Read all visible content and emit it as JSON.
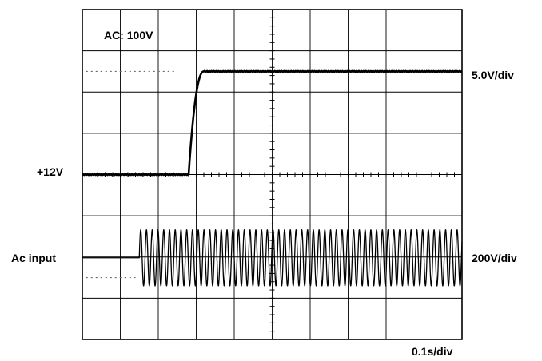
{
  "chart_data": {
    "type": "line",
    "annotation": "AC: 100V",
    "xlabel": "0.1s/div",
    "grid": {
      "divisions_x": 10,
      "divisions_y": 8,
      "visible": true
    },
    "channels": [
      {
        "id": "ch1",
        "name": "+12V",
        "scale_label": "5.0V/div",
        "kind": "step",
        "initial_level_div": 4,
        "final_level_div": 6.5,
        "rise_start_div": 2.8,
        "rise_end_div": 3.2,
        "x_unit": "div",
        "y_unit": "div"
      },
      {
        "id": "ch2",
        "name": "Ac input",
        "scale_label": "200V/div",
        "kind": "sinusoid",
        "baseline_div": 1.98,
        "start_div": 1.5,
        "amplitude_div": 0.68,
        "cycles_per_div": 6.6,
        "x_unit": "div",
        "y_unit": "div"
      }
    ],
    "reference_markers": [
      {
        "channel": "ch1",
        "level_div": 6.5,
        "x_range_div": [
          0.1,
          2.5
        ]
      },
      {
        "channel": "ch2",
        "level_div": 1.5,
        "x_range_div": [
          0.1,
          1.4
        ]
      }
    ]
  }
}
